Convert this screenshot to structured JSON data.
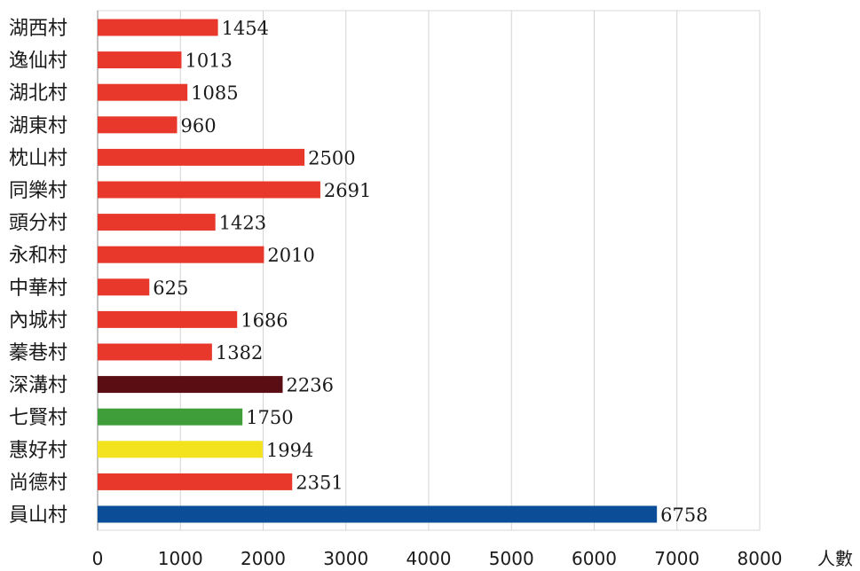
{
  "chart_data": {
    "type": "bar",
    "orientation": "horizontal",
    "categories": [
      "湖西村",
      "逸仙村",
      "湖北村",
      "湖東村",
      "枕山村",
      "同樂村",
      "頭分村",
      "永和村",
      "中華村",
      "內城村",
      "蓁巷村",
      "深溝村",
      "七賢村",
      "惠好村",
      "尚德村",
      "員山村"
    ],
    "values": [
      1454,
      1013,
      1085,
      960,
      2500,
      2691,
      1423,
      2010,
      625,
      1686,
      1382,
      2236,
      1750,
      1994,
      2351,
      6758
    ],
    "value_labels": [
      "1454",
      "1013",
      "1085",
      "960",
      "2500",
      "2691",
      "1423",
      "2010",
      "625",
      "1686",
      "1382",
      "2236",
      "1750",
      "1994",
      "2351",
      "6758"
    ],
    "bar_colors": [
      "#e8382b",
      "#e8382b",
      "#e8382b",
      "#e8382b",
      "#e8382b",
      "#e8382b",
      "#e8382b",
      "#e8382b",
      "#e8382b",
      "#e8382b",
      "#e8382b",
      "#5a0d12",
      "#3f9e3a",
      "#f3e21e",
      "#e8382b",
      "#0b4d96"
    ],
    "xlim": [
      0,
      8000
    ],
    "x_ticks": [
      "0",
      "1000",
      "2000",
      "3000",
      "4000",
      "5000",
      "6000",
      "7000",
      "8000"
    ],
    "x_unit": "人數",
    "grid": "vertical",
    "title": "",
    "xlabel": "",
    "ylabel": ""
  }
}
